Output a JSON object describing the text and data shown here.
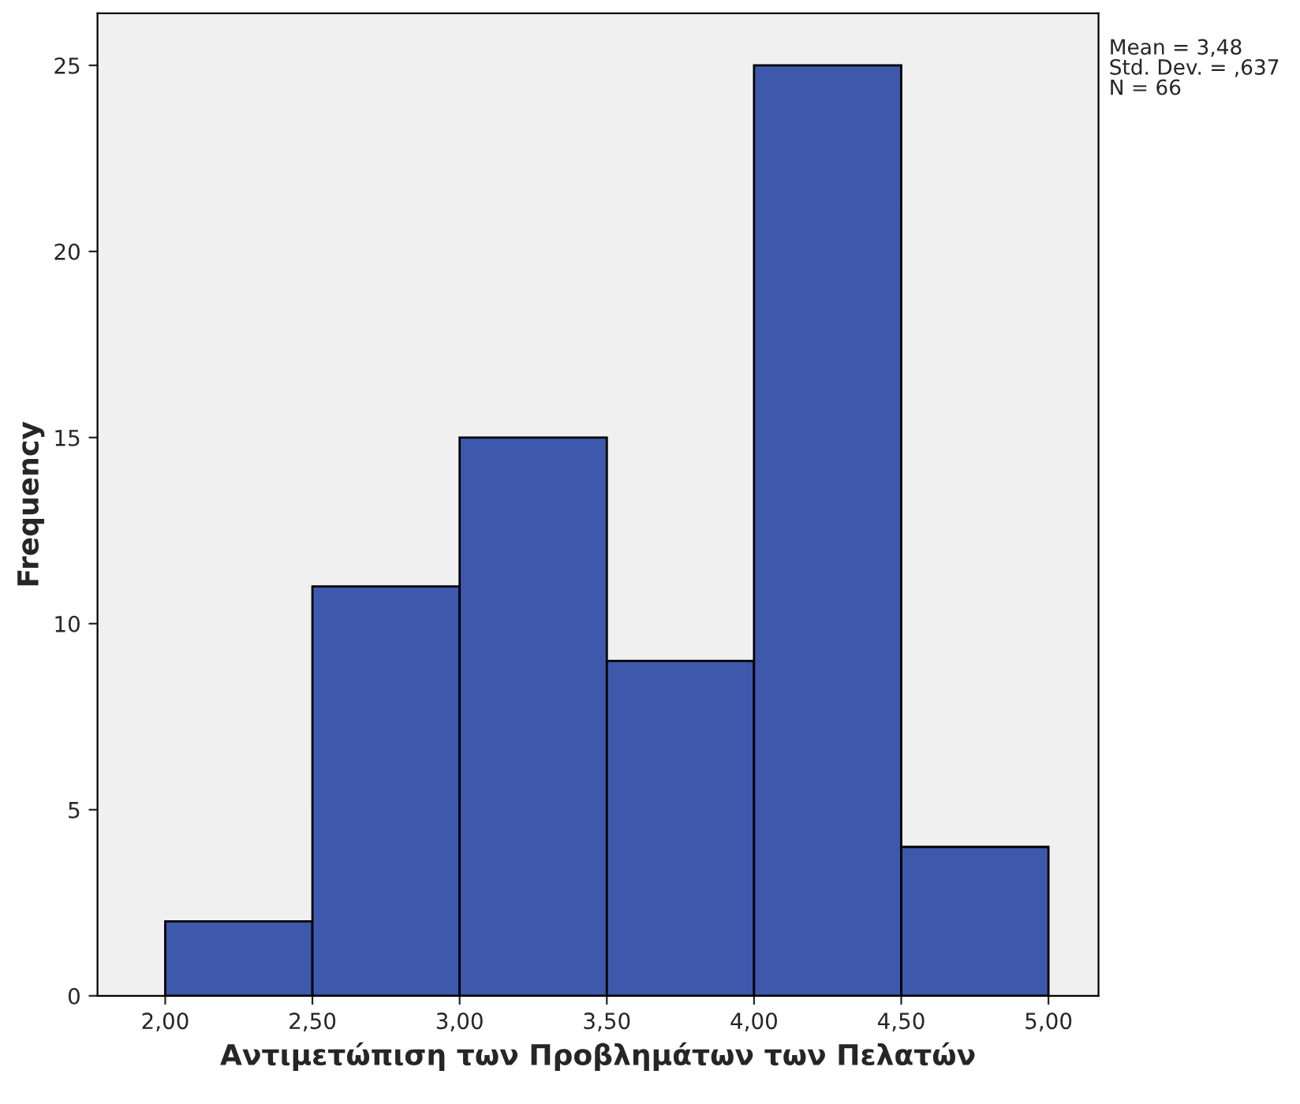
{
  "chart_data": {
    "type": "histogram",
    "xlabel": "Αντιμετώπιση των Προβλημάτων των Πελατών",
    "ylabel": "Frequency",
    "bins": [
      2.0,
      2.5,
      3.0,
      3.5,
      4.0,
      4.5,
      5.0
    ],
    "values": [
      2,
      11,
      15,
      9,
      25,
      4
    ],
    "color": "#3e58ac",
    "xlim": [
      1.77,
      5.17
    ],
    "ylim": [
      0,
      26.4
    ],
    "xticks": [
      {
        "value": 2.0,
        "label": "2,00"
      },
      {
        "value": 2.5,
        "label": "2,50"
      },
      {
        "value": 3.0,
        "label": "3,00"
      },
      {
        "value": 3.5,
        "label": "3,50"
      },
      {
        "value": 4.0,
        "label": "4,00"
      },
      {
        "value": 4.5,
        "label": "4,50"
      },
      {
        "value": 5.0,
        "label": "5,00"
      }
    ],
    "yticks": [
      0,
      5,
      10,
      15,
      20,
      25
    ],
    "annotations": [
      "Mean = 3,48\nStd. Dev. = ,637\nN = 66"
    ],
    "grid": false
  }
}
